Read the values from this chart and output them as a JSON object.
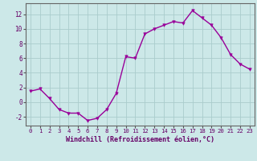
{
  "x": [
    0,
    1,
    2,
    3,
    4,
    5,
    6,
    7,
    8,
    9,
    10,
    11,
    12,
    13,
    14,
    15,
    16,
    17,
    18,
    19,
    20,
    21,
    22,
    23
  ],
  "y": [
    1.5,
    1.8,
    0.5,
    -1.0,
    -1.5,
    -1.5,
    -2.5,
    -2.2,
    -1.0,
    1.2,
    6.2,
    6.0,
    9.3,
    10.0,
    10.5,
    11.0,
    10.8,
    12.5,
    11.5,
    10.5,
    8.8,
    6.5,
    5.2,
    4.5
  ],
  "line_color": "#990099",
  "marker_color": "#990099",
  "bg_color": "#cce8e8",
  "grid_color": "#aacccc",
  "axis_color": "#333333",
  "xlabel": "Windchill (Refroidissement éolien,°C)",
  "ylabel": "",
  "xlim": [
    -0.5,
    23.5
  ],
  "ylim": [
    -3.2,
    13.5
  ],
  "yticks": [
    -2,
    0,
    2,
    4,
    6,
    8,
    10,
    12
  ],
  "xticks": [
    0,
    1,
    2,
    3,
    4,
    5,
    6,
    7,
    8,
    9,
    10,
    11,
    12,
    13,
    14,
    15,
    16,
    17,
    18,
    19,
    20,
    21,
    22,
    23
  ],
  "font_color": "#660066"
}
